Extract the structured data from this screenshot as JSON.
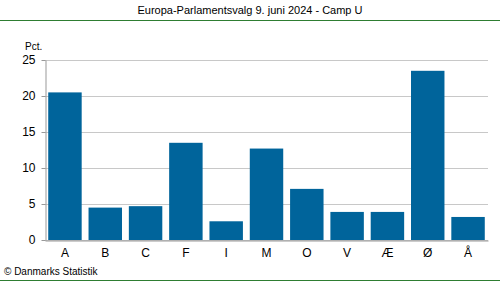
{
  "chart_data": {
    "type": "bar",
    "title": "Europa-Parlamentsvalg 9. juni 2024 - Camp U",
    "y_label": "Pct.",
    "source": "© Danmarks Statistik",
    "categories": [
      "A",
      "B",
      "C",
      "F",
      "I",
      "M",
      "O",
      "V",
      "Æ",
      "Ø",
      "Å"
    ],
    "values": [
      20.5,
      4.5,
      4.7,
      13.5,
      2.6,
      12.7,
      7.1,
      3.9,
      3.9,
      23.5,
      3.2
    ],
    "color": "#00649b",
    "ylim": [
      0,
      25
    ],
    "yticks": [
      0,
      5,
      10,
      15,
      20,
      25
    ],
    "grid": true
  }
}
